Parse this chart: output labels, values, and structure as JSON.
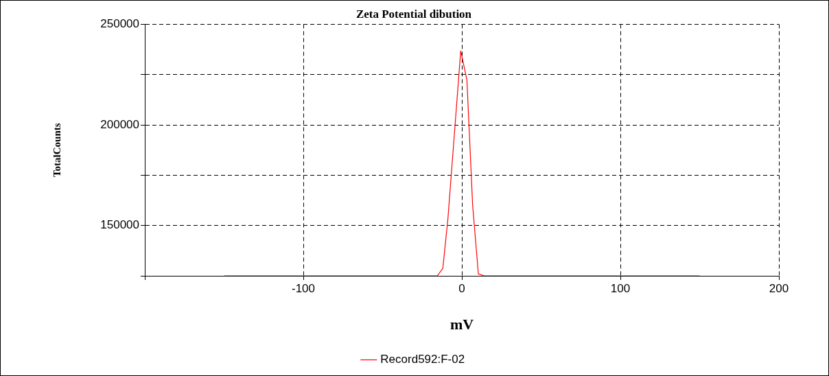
{
  "chart_data": {
    "type": "line",
    "title": "Zeta Potential dibution",
    "xlabel": "mV",
    "ylabel": "TotalCounts",
    "x": [
      -150,
      -15.5,
      -12,
      -8.8,
      -0.7,
      3.2,
      6.8,
      10.4,
      14,
      150
    ],
    "series": [
      {
        "name": "Record592:F-02",
        "color": "#ff0000",
        "values": [
          125000,
          125000,
          128700,
          153300,
          236800,
          222300,
          160100,
          126000,
          125000,
          125000
        ]
      }
    ],
    "xlim": [
      -200,
      200
    ],
    "xticks": [
      {
        "value": -200,
        "label": null
      },
      -100,
      0,
      100,
      200
    ],
    "ylim": [
      125000,
      250000
    ],
    "yticks": [
      {
        "value": 125000,
        "label": null
      },
      150000,
      {
        "value": 175000,
        "label": null
      },
      200000,
      {
        "value": 225000,
        "label": null
      },
      250000
    ],
    "grid": true,
    "legend": "bottom",
    "marker": "none",
    "line_style": "solid"
  }
}
